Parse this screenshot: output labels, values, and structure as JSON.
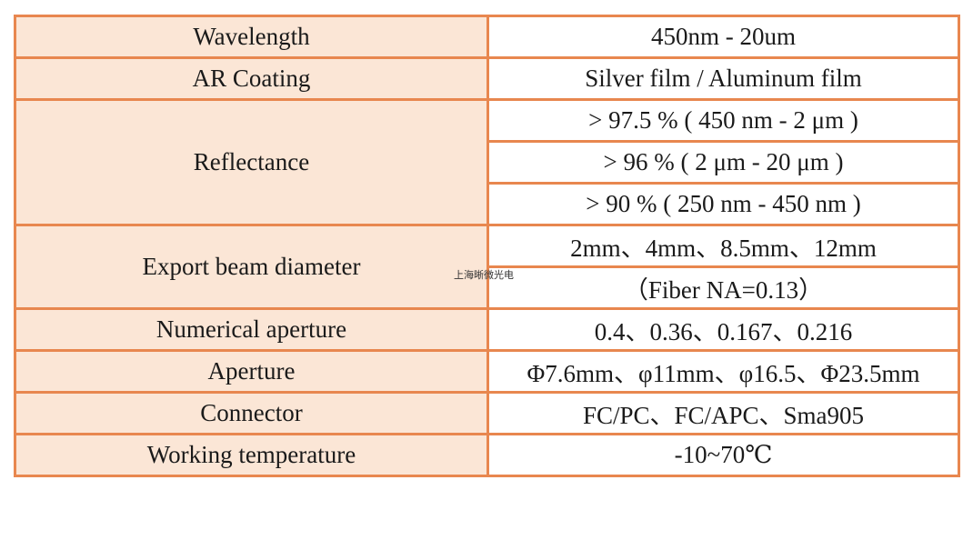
{
  "rows": {
    "wavelength": {
      "label": "Wavelength",
      "value": "450nm - 20um"
    },
    "ar_coating": {
      "label": "AR Coating",
      "value": "Silver film / Aluminum film"
    },
    "reflectance": {
      "label": "Reflectance",
      "values": [
        "> 97.5 % ( 450 nm - 2 μm )",
        "> 96 % ( 2 μm - 20 μm )",
        "> 90 % ( 250 nm - 450 nm )"
      ]
    },
    "export_beam_diameter": {
      "label": "Export beam diameter",
      "values": [
        "2mm、4mm、8.5mm、12mm",
        "（Fiber NA=0.13）"
      ]
    },
    "numerical_aperture": {
      "label": "Numerical aperture",
      "value": "0.4、0.36、0.167、0.216"
    },
    "aperture": {
      "label": "Aperture",
      "value": "Φ7.6mm、φ11mm、φ16.5、Φ23.5mm"
    },
    "connector": {
      "label": "Connector",
      "value": "FC/PC、FC/APC、Sma905"
    },
    "working_temperature": {
      "label": "Working temperature",
      "value": "-10~70℃"
    }
  },
  "watermark": "上海晰微光电",
  "colors": {
    "border": "#e8874f",
    "label_background": "#fbe6d6",
    "value_background": "#ffffff"
  }
}
